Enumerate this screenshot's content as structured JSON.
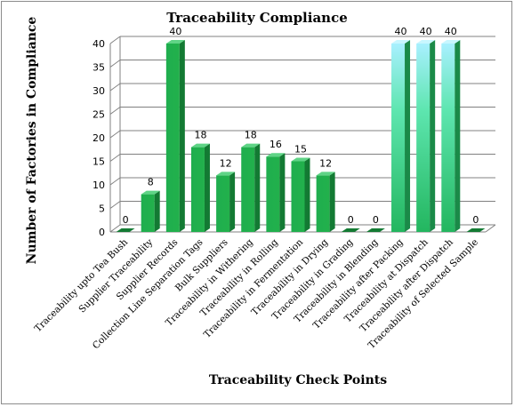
{
  "chart_data": {
    "type": "bar",
    "title": "Traceability Compliance",
    "xlabel": "Traceability Check Points",
    "ylabel": "Number of Factories in Compliance",
    "ylim": [
      0,
      40
    ],
    "yticks": [
      0,
      5,
      10,
      15,
      20,
      25,
      30,
      35,
      40
    ],
    "grid": true,
    "legend": "none",
    "categories": [
      "Traceability upto Tea Bush",
      "Supplier Traceability",
      "Supplier Records",
      "Collection Line Separation Tags",
      "Bulk Suppliers",
      "Traceability in Withering",
      "Traceability in Rolling",
      "Traceability in Fermentation",
      "Traceability in Drying",
      "Traceability in Grading",
      "Traceability in Blending",
      "Traceability after Packing",
      "Traceability at Dispatch",
      "Traceability after Dispatch",
      "Traceability of Selected Sample"
    ],
    "values": [
      0,
      8,
      40,
      18,
      12,
      18,
      16,
      15,
      12,
      0,
      0,
      40,
      40,
      40,
      0
    ],
    "colors": {
      "bar_front": "#22b14c",
      "bar_side": "#137a33",
      "bar_top": "#5fd486",
      "bar_light_front": "#2fc070",
      "bar_light_side": "#a9f0ff",
      "bar_light_top": "#c8f7ff",
      "grid": "#808080"
    }
  }
}
